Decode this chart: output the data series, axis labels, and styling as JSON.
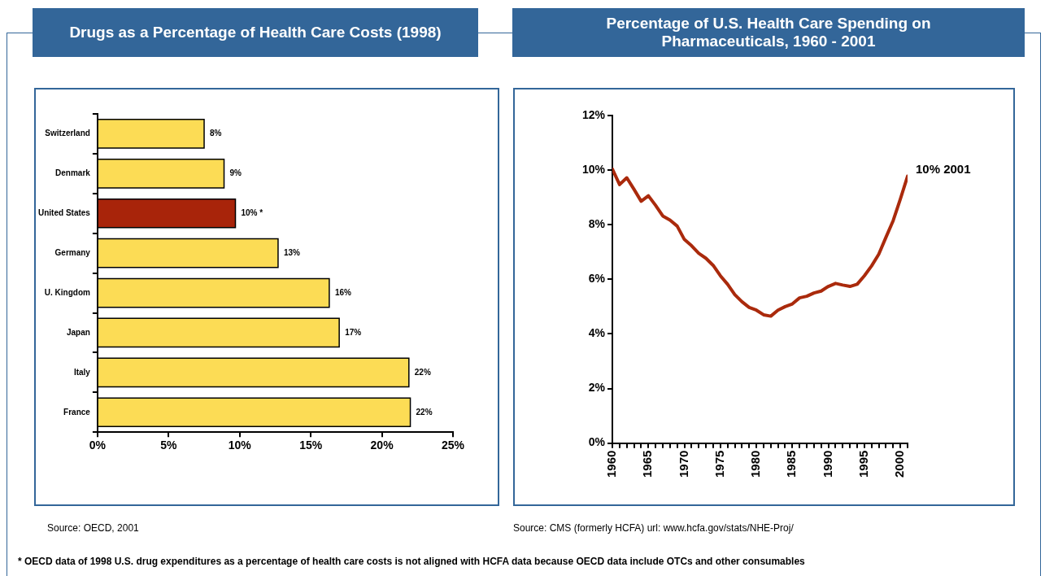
{
  "chart_data": [
    {
      "type": "bar",
      "orientation": "horizontal",
      "title": "Drugs as a Percentage of Health Care Costs (1998)",
      "categories": [
        "Switzerland",
        "Denmark",
        "United States",
        "Germany",
        "U. Kingdom",
        "Japan",
        "Italy",
        "France"
      ],
      "values": [
        7.5,
        8.9,
        9.7,
        12.7,
        16.3,
        17.0,
        21.9,
        22.0
      ],
      "value_labels": [
        "8%",
        "9%",
        "10% *",
        "13%",
        "16%",
        "17%",
        "22%",
        "22%"
      ],
      "colors": [
        "#fcdc55",
        "#fcdc55",
        "#a8240a",
        "#fcdc55",
        "#fcdc55",
        "#fcdc55",
        "#fcdc55",
        "#fcdc55"
      ],
      "xlim": [
        0,
        25
      ],
      "xticks": [
        {
          "value": 0,
          "label": "0%"
        },
        {
          "value": 5,
          "label": "5%"
        },
        {
          "value": 10,
          "label": "10%"
        },
        {
          "value": 15,
          "label": "15%"
        },
        {
          "value": 20,
          "label": "20%"
        },
        {
          "value": 25,
          "label": "25%"
        }
      ],
      "grid": false,
      "legend": false,
      "annotations": [
        "Source: OECD, 2001",
        "* OECD data of 1998 U.S. drug expenditures as a percentage of health care costs is not aligned with HCFA data because OECD data include OTCs and other consumables"
      ]
    },
    {
      "type": "line",
      "title": "Percentage of U.S. Health Care Spending on Pharmaceuticals, 1960 - 2001",
      "x": [
        1960,
        1961,
        1962,
        1963,
        1964,
        1965,
        1966,
        1967,
        1968,
        1969,
        1970,
        1971,
        1972,
        1973,
        1974,
        1975,
        1976,
        1977,
        1978,
        1979,
        1980,
        1981,
        1982,
        1983,
        1984,
        1985,
        1986,
        1987,
        1988,
        1989,
        1990,
        1991,
        1992,
        1993,
        1994,
        1995,
        1996,
        1997,
        1998,
        1999,
        2000,
        2001
      ],
      "series": [
        {
          "color": "#aa2a0c",
          "values": [
            10.04,
            9.47,
            9.72,
            9.3,
            8.86,
            9.06,
            8.71,
            8.32,
            8.17,
            7.95,
            7.46,
            7.23,
            6.95,
            6.77,
            6.51,
            6.13,
            5.82,
            5.44,
            5.18,
            4.97,
            4.87,
            4.7,
            4.65,
            4.87,
            5.0,
            5.1,
            5.32,
            5.38,
            5.5,
            5.57,
            5.74,
            5.85,
            5.79,
            5.74,
            5.82,
            6.13,
            6.49,
            6.92,
            7.54,
            8.15,
            8.94,
            9.78
          ]
        }
      ],
      "xlim": [
        1960,
        2001
      ],
      "xticks": [
        1960,
        {
          "value": 1961,
          "label": null
        },
        {
          "value": 1962,
          "label": null
        },
        {
          "value": 1963,
          "label": null
        },
        {
          "value": 1964,
          "label": null
        },
        1965,
        {
          "value": 1966,
          "label": null
        },
        {
          "value": 1967,
          "label": null
        },
        {
          "value": 1968,
          "label": null
        },
        {
          "value": 1969,
          "label": null
        },
        1970,
        {
          "value": 1971,
          "label": null
        },
        {
          "value": 1972,
          "label": null
        },
        {
          "value": 1973,
          "label": null
        },
        {
          "value": 1974,
          "label": null
        },
        1975,
        {
          "value": 1976,
          "label": null
        },
        {
          "value": 1977,
          "label": null
        },
        {
          "value": 1978,
          "label": null
        },
        {
          "value": 1979,
          "label": null
        },
        1980,
        {
          "value": 1981,
          "label": null
        },
        {
          "value": 1982,
          "label": null
        },
        {
          "value": 1983,
          "label": null
        },
        {
          "value": 1984,
          "label": null
        },
        1985,
        {
          "value": 1986,
          "label": null
        },
        {
          "value": 1987,
          "label": null
        },
        {
          "value": 1988,
          "label": null
        },
        {
          "value": 1989,
          "label": null
        },
        1990,
        {
          "value": 1991,
          "label": null
        },
        {
          "value": 1992,
          "label": null
        },
        {
          "value": 1993,
          "label": null
        },
        {
          "value": 1994,
          "label": null
        },
        1995,
        {
          "value": 1996,
          "label": null
        },
        {
          "value": 1997,
          "label": null
        },
        {
          "value": 1998,
          "label": null
        },
        {
          "value": 1999,
          "label": null
        },
        2000,
        {
          "value": 2001,
          "label": null
        }
      ],
      "ylim": [
        0,
        12
      ],
      "yticks": [
        {
          "value": 0,
          "label": "0%"
        },
        {
          "value": 2,
          "label": "2%"
        },
        {
          "value": 4,
          "label": "4%"
        },
        {
          "value": 6,
          "label": "6%"
        },
        {
          "value": 8,
          "label": "8%"
        },
        {
          "value": 10,
          "label": "10%"
        },
        {
          "value": 12,
          "label": "12%"
        }
      ],
      "grid": false,
      "legend": false,
      "marker": "none",
      "line_style": "solid",
      "annotations": [
        {
          "text": "10% 2001",
          "x": 2001,
          "y": 9.78
        },
        "Source: CMS (formerly HCFA)  url: www.hcfa.gov/stats/NHE-Proj/"
      ]
    }
  ]
}
